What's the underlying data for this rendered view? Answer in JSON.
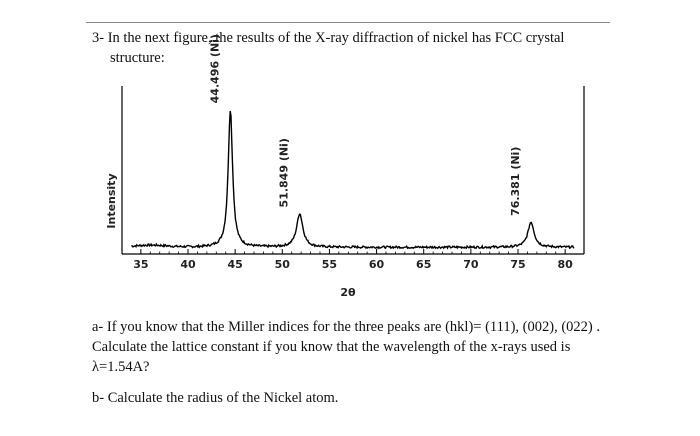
{
  "problem": {
    "title_line1": "3- In the next figure, the results of the X-ray diffraction of nickel has FCC crystal",
    "title_line2": "structure:",
    "part_a": "a- If you know that the Miller indices for the three peaks are (hkl)= (111), (002), (022) . Calculate the lattice constant if you know that the wavelength of the x-rays used is λ=1.54A?",
    "part_b": "b- Calculate the radius of the Nickel atom."
  },
  "chart_data": {
    "type": "line",
    "xlabel": "2θ",
    "ylabel": "Intensity",
    "xlim": [
      33,
      82
    ],
    "ylim": [
      0,
      100
    ],
    "xticks": [
      35,
      40,
      45,
      50,
      55,
      60,
      65,
      70,
      75,
      80
    ],
    "grid": false,
    "peaks": [
      {
        "x": 44.496,
        "label": "44.496 (Ni)",
        "height": 82
      },
      {
        "x": 51.849,
        "label": "51.849 (Ni)",
        "height": 20
      },
      {
        "x": 76.381,
        "label": "76.381 (Ni)",
        "height": 15
      }
    ],
    "baseline": 4,
    "colors": {
      "line": "#000000"
    }
  }
}
